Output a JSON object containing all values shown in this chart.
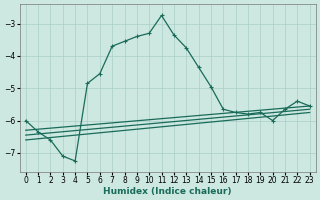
{
  "xlabel": "Humidex (Indice chaleur)",
  "background_color": "#cce8e0",
  "grid_color": "#aacfc8",
  "line_color": "#1a6b5a",
  "xlim": [
    -0.5,
    23.5
  ],
  "ylim": [
    -7.6,
    -2.4
  ],
  "yticks": [
    -7,
    -6,
    -5,
    -4,
    -3
  ],
  "xticks": [
    0,
    1,
    2,
    3,
    4,
    5,
    6,
    7,
    8,
    9,
    10,
    11,
    12,
    13,
    14,
    15,
    16,
    17,
    18,
    19,
    20,
    21,
    22,
    23
  ],
  "flat_lines": [
    {
      "x": [
        0,
        23
      ],
      "y": [
        -6.3,
        -5.55
      ]
    },
    {
      "x": [
        0,
        23
      ],
      "y": [
        -6.45,
        -5.65
      ]
    },
    {
      "x": [
        0,
        23
      ],
      "y": [
        -6.6,
        -5.75
      ]
    }
  ],
  "main_line": {
    "x": [
      0,
      1,
      2,
      3,
      4,
      5,
      6,
      7,
      8,
      9,
      10,
      11,
      12,
      13,
      14,
      15,
      16,
      17,
      18,
      19,
      20,
      21,
      22,
      23
    ],
    "y": [
      -6.0,
      -6.35,
      -6.6,
      -7.1,
      -7.25,
      -4.85,
      -4.55,
      -3.7,
      -3.55,
      -3.4,
      -3.3,
      -2.75,
      -3.35,
      -3.75,
      -4.35,
      -4.95,
      -5.65,
      -5.75,
      -5.8,
      -5.75,
      -6.0,
      -5.65,
      -5.4,
      -5.55
    ]
  }
}
